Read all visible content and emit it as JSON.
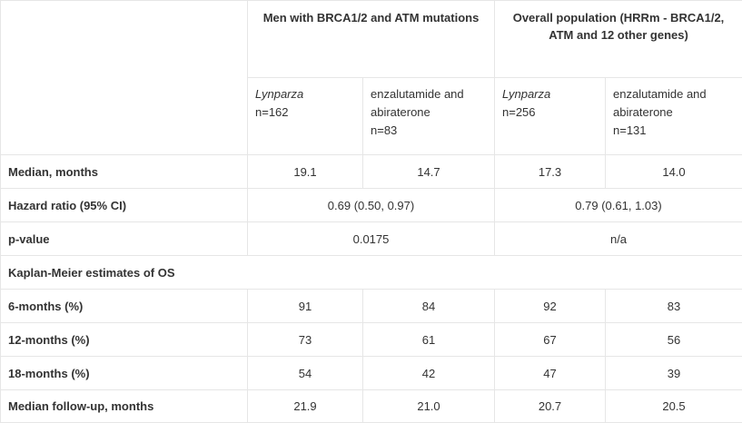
{
  "header": {
    "group1": "Men with BRCA1/2 and ATM mutations",
    "group2": "Overall population (HRRm - BRCA1/2, ATM and 12 other genes)"
  },
  "subheader": [
    {
      "drug": "Lynparza",
      "n": "n=162",
      "italic": true
    },
    {
      "drug": "enzalutamide and abiraterone",
      "n": "n=83",
      "italic": false
    },
    {
      "drug": "Lynparza",
      "n": "n=256",
      "italic": true
    },
    {
      "drug": "enzalutamide and abiraterone",
      "n": "n=131",
      "italic": false
    }
  ],
  "rows": {
    "median": {
      "label": "Median, months",
      "v1": "19.1",
      "v2": "14.7",
      "v3": "17.3",
      "v4": "14.0"
    },
    "hazard": {
      "label": "Hazard ratio (95% CI)",
      "g1": "0.69 (0.50, 0.97)",
      "g2": "0.79 (0.61, 1.03)"
    },
    "pvalue": {
      "label": "p-value",
      "g1": "0.0175",
      "g2": "n/a"
    },
    "km": {
      "label": "Kaplan-Meier estimates of OS"
    },
    "m6": {
      "label": "6-months (%)",
      "v1": "91",
      "v2": "84",
      "v3": "92",
      "v4": "83"
    },
    "m12": {
      "label": "12-months (%)",
      "v1": "73",
      "v2": "61",
      "v3": "67",
      "v4": "56"
    },
    "m18": {
      "label": "18-months (%)",
      "v1": "54",
      "v2": "42",
      "v3": "47",
      "v4": "39"
    },
    "followup": {
      "label": "Median follow-up, months",
      "v1": "21.9",
      "v2": "21.0",
      "v3": "20.7",
      "v4": "20.5"
    }
  }
}
